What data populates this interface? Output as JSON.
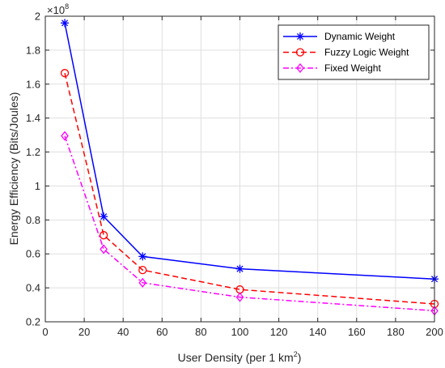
{
  "chart_data": {
    "type": "line",
    "xlabel": "User Density (per 1 km",
    "xlabel_sup": "2",
    "xlabel_suffix": ")",
    "ylabel": "Energy Efficiency (Bits/Joules)",
    "y_exponent_base": "×10",
    "y_exponent_power": "8",
    "xlim": [
      0,
      200
    ],
    "ylim": [
      0.2,
      2
    ],
    "xticks": [
      0,
      20,
      40,
      60,
      80,
      100,
      120,
      140,
      160,
      180,
      200
    ],
    "yticks": [
      0.2,
      0.4,
      0.6,
      0.8,
      1,
      1.2,
      1.4,
      1.6,
      1.8,
      2
    ],
    "ytick_labels": [
      "0.2",
      "0.4",
      "0.6",
      "0.8",
      "1",
      "1.2",
      "1.4",
      "1.6",
      "1.8",
      "2"
    ],
    "grid": true,
    "legend_position": "top-right",
    "x": [
      10,
      30,
      50,
      100,
      200
    ],
    "series": [
      {
        "name": "Dynamic Weight",
        "values": [
          1.96,
          0.82,
          0.585,
          0.512,
          0.452
        ],
        "color": "#0000ff",
        "line_style": "solid",
        "marker": "asterisk"
      },
      {
        "name": "Fuzzy Logic Weight",
        "values": [
          1.665,
          0.71,
          0.505,
          0.39,
          0.305
        ],
        "color": "#ff0000",
        "line_style": "dashed",
        "marker": "circle"
      },
      {
        "name": "Fixed Weight",
        "values": [
          1.295,
          0.628,
          0.43,
          0.345,
          0.265
        ],
        "color": "#ff00ff",
        "line_style": "dashdot",
        "marker": "diamond"
      }
    ]
  }
}
